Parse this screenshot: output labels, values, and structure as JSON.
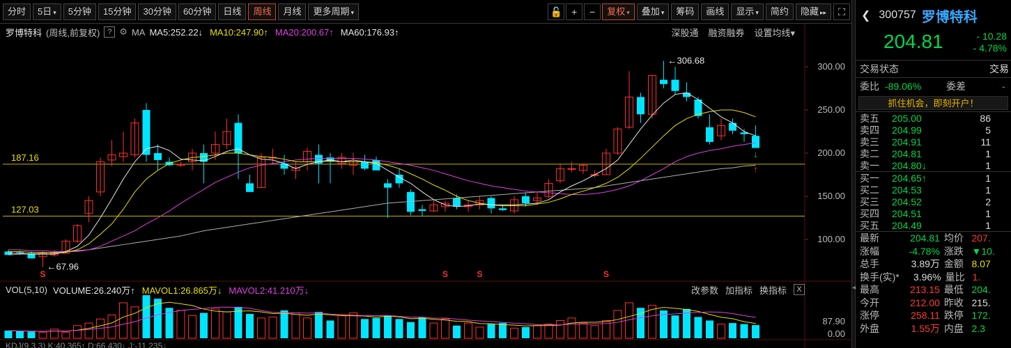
{
  "toolbar": {
    "periods": [
      {
        "label": "分时",
        "dropdown": false,
        "active": false
      },
      {
        "label": "5日",
        "dropdown": true,
        "active": false
      },
      {
        "label": "5分钟",
        "dropdown": false,
        "active": false
      },
      {
        "label": "15分钟",
        "dropdown": false,
        "active": false
      },
      {
        "label": "30分钟",
        "dropdown": false,
        "active": false
      },
      {
        "label": "60分钟",
        "dropdown": false,
        "active": false
      },
      {
        "label": "日线",
        "dropdown": false,
        "active": false
      },
      {
        "label": "周线",
        "dropdown": false,
        "active": true
      },
      {
        "label": "月线",
        "dropdown": false,
        "active": false
      },
      {
        "label": "更多周期",
        "dropdown": true,
        "active": false
      }
    ],
    "tools": [
      {
        "label": "复权",
        "dropdown": true,
        "active": true
      },
      {
        "label": "叠加",
        "dropdown": true,
        "active": false
      },
      {
        "label": "筹码",
        "dropdown": false,
        "active": false
      },
      {
        "label": "画线",
        "dropdown": false,
        "active": false
      },
      {
        "label": "显示",
        "dropdown": true,
        "active": false
      },
      {
        "label": "简约",
        "dropdown": false,
        "active": false
      },
      {
        "label": "隐藏",
        "dropdown": false,
        "active": false
      }
    ],
    "icons": [
      "lock-icon",
      "zoom-in-icon",
      "zoom-out-icon"
    ],
    "icon_glyphs": [
      "🔓",
      "+",
      "−"
    ],
    "hide_glyph": "▸▸",
    "fullscreen_glyph": "⛶"
  },
  "indicator_bar": {
    "stock_name": "罗博特科",
    "subtitle": "(周线,前复权)",
    "help": "?",
    "ma_label": "MA",
    "ma_items": [
      {
        "text": "MA5:252.22↓",
        "color": "#e6e6e6"
      },
      {
        "text": "MA10:247.90↑",
        "color": "#e8e000"
      },
      {
        "text": "MA20:200.67↑",
        "color": "#e040e0"
      },
      {
        "text": "MA60:176.93↑",
        "color": "#e6e6e6"
      }
    ],
    "links": [
      "深股通",
      "融资融券",
      "设置均线▾"
    ]
  },
  "price_axis": {
    "labels": [
      "300.00",
      "250.00",
      "200.00",
      "150.00",
      "100.00"
    ],
    "values": [
      300,
      250,
      200,
      150,
      100
    ]
  },
  "reference_lines": [
    {
      "label": "187.16",
      "value": 187.16
    },
    {
      "label": "127.03",
      "value": 127.03
    }
  ],
  "annotations": {
    "high": "306.68",
    "low": "67.96",
    "s_marker": "S"
  },
  "chart_data": {
    "type": "candlestick",
    "period": "weekly",
    "candles": [
      {
        "o": 86,
        "h": 88,
        "l": 84,
        "c": 82
      },
      {
        "o": 85,
        "h": 87,
        "l": 82,
        "c": 84
      },
      {
        "o": 84,
        "h": 86,
        "l": 78,
        "c": 78
      },
      {
        "o": 80,
        "h": 86,
        "l": 68,
        "c": 84
      },
      {
        "o": 82,
        "h": 88,
        "l": 80,
        "c": 85
      },
      {
        "o": 84,
        "h": 100,
        "l": 84,
        "c": 98
      },
      {
        "o": 98,
        "h": 118,
        "l": 96,
        "c": 116
      },
      {
        "o": 130,
        "h": 150,
        "l": 120,
        "c": 145
      },
      {
        "o": 155,
        "h": 195,
        "l": 150,
        "c": 190
      },
      {
        "o": 192,
        "h": 215,
        "l": 185,
        "c": 198
      },
      {
        "o": 196,
        "h": 225,
        "l": 190,
        "c": 200
      },
      {
        "o": 198,
        "h": 240,
        "l": 195,
        "c": 235
      },
      {
        "o": 250,
        "h": 258,
        "l": 190,
        "c": 198
      },
      {
        "o": 200,
        "h": 210,
        "l": 180,
        "c": 192
      },
      {
        "o": 190,
        "h": 195,
        "l": 185,
        "c": 186
      },
      {
        "o": 186,
        "h": 190,
        "l": 184,
        "c": 187
      },
      {
        "o": 190,
        "h": 205,
        "l": 180,
        "c": 200
      },
      {
        "o": 200,
        "h": 210,
        "l": 165,
        "c": 190
      },
      {
        "o": 200,
        "h": 225,
        "l": 192,
        "c": 210
      },
      {
        "o": 210,
        "h": 240,
        "l": 205,
        "c": 225
      },
      {
        "o": 235,
        "h": 245,
        "l": 170,
        "c": 200
      },
      {
        "o": 165,
        "h": 175,
        "l": 155,
        "c": 155
      },
      {
        "o": 160,
        "h": 200,
        "l": 160,
        "c": 195
      },
      {
        "o": 195,
        "h": 205,
        "l": 188,
        "c": 195
      },
      {
        "o": 188,
        "h": 198,
        "l": 175,
        "c": 182
      },
      {
        "o": 180,
        "h": 190,
        "l": 170,
        "c": 183
      },
      {
        "o": 190,
        "h": 206,
        "l": 180,
        "c": 202
      },
      {
        "o": 198,
        "h": 210,
        "l": 165,
        "c": 188
      },
      {
        "o": 195,
        "h": 200,
        "l": 165,
        "c": 190
      },
      {
        "o": 188,
        "h": 200,
        "l": 182,
        "c": 195
      },
      {
        "o": 186,
        "h": 200,
        "l": 175,
        "c": 190
      },
      {
        "o": 190,
        "h": 198,
        "l": 180,
        "c": 182
      },
      {
        "o": 192,
        "h": 196,
        "l": 180,
        "c": 180
      },
      {
        "o": 165,
        "h": 170,
        "l": 125,
        "c": 160
      },
      {
        "o": 175,
        "h": 182,
        "l": 160,
        "c": 165
      },
      {
        "o": 155,
        "h": 158,
        "l": 128,
        "c": 132
      },
      {
        "o": 135,
        "h": 140,
        "l": 127,
        "c": 133
      },
      {
        "o": 133,
        "h": 145,
        "l": 132,
        "c": 140
      },
      {
        "o": 138,
        "h": 145,
        "l": 132,
        "c": 142
      },
      {
        "o": 148,
        "h": 152,
        "l": 135,
        "c": 138
      },
      {
        "o": 138,
        "h": 145,
        "l": 132,
        "c": 140
      },
      {
        "o": 140,
        "h": 150,
        "l": 135,
        "c": 145
      },
      {
        "o": 148,
        "h": 150,
        "l": 130,
        "c": 136
      },
      {
        "o": 136,
        "h": 140,
        "l": 133,
        "c": 134
      },
      {
        "o": 133,
        "h": 150,
        "l": 130,
        "c": 146
      },
      {
        "o": 150,
        "h": 154,
        "l": 138,
        "c": 142
      },
      {
        "o": 145,
        "h": 155,
        "l": 140,
        "c": 148
      },
      {
        "o": 150,
        "h": 170,
        "l": 148,
        "c": 165
      },
      {
        "o": 168,
        "h": 188,
        "l": 165,
        "c": 182
      },
      {
        "o": 182,
        "h": 190,
        "l": 178,
        "c": 182
      },
      {
        "o": 180,
        "h": 188,
        "l": 176,
        "c": 186
      },
      {
        "o": 175,
        "h": 180,
        "l": 172,
        "c": 175
      },
      {
        "o": 175,
        "h": 205,
        "l": 175,
        "c": 200
      },
      {
        "o": 200,
        "h": 230,
        "l": 198,
        "c": 228
      },
      {
        "o": 230,
        "h": 295,
        "l": 228,
        "c": 265
      },
      {
        "o": 265,
        "h": 270,
        "l": 235,
        "c": 245
      },
      {
        "o": 245,
        "h": 290,
        "l": 240,
        "c": 290
      },
      {
        "o": 285,
        "h": 307,
        "l": 275,
        "c": 280
      },
      {
        "o": 285,
        "h": 300,
        "l": 268,
        "c": 272
      },
      {
        "o": 270,
        "h": 282,
        "l": 260,
        "c": 265
      },
      {
        "o": 262,
        "h": 265,
        "l": 240,
        "c": 243
      },
      {
        "o": 230,
        "h": 245,
        "l": 210,
        "c": 213
      },
      {
        "o": 220,
        "h": 240,
        "l": 215,
        "c": 232
      },
      {
        "o": 235,
        "h": 240,
        "l": 222,
        "c": 226
      },
      {
        "o": 224,
        "h": 228,
        "l": 213,
        "c": 222
      },
      {
        "o": 220,
        "h": 232,
        "l": 208,
        "c": 206
      }
    ],
    "ma5": [
      84,
      84,
      83,
      83,
      83,
      86,
      92,
      105,
      125,
      147,
      170,
      190,
      205,
      208,
      203,
      193,
      192,
      191,
      196,
      202,
      205,
      198,
      193,
      192,
      188,
      182,
      187,
      190,
      192,
      190,
      192,
      190,
      188,
      180,
      172,
      165,
      155,
      146,
      140,
      138,
      139,
      141,
      140,
      140,
      140,
      141,
      142,
      146,
      155,
      162,
      168,
      175,
      182,
      192,
      210,
      228,
      244,
      258,
      268,
      270,
      262,
      252,
      242,
      235,
      225,
      220
    ],
    "ma10": [
      86,
      86,
      85,
      85,
      84,
      85,
      88,
      95,
      106,
      118,
      135,
      155,
      170,
      180,
      188,
      192,
      195,
      196,
      198,
      200,
      200,
      198,
      196,
      195,
      193,
      190,
      190,
      190,
      191,
      190,
      190,
      190,
      189,
      186,
      182,
      176,
      170,
      163,
      157,
      150,
      145,
      142,
      140,
      139,
      139,
      139,
      141,
      143,
      147,
      152,
      156,
      160,
      165,
      172,
      182,
      194,
      207,
      220,
      232,
      240,
      245,
      248,
      250,
      250,
      247,
      242
    ],
    "ma20": [
      88,
      88,
      87,
      87,
      86,
      86,
      86,
      88,
      92,
      98,
      104,
      110,
      118,
      125,
      133,
      142,
      150,
      158,
      166,
      172,
      178,
      183,
      186,
      188,
      190,
      192,
      193,
      194,
      194,
      194,
      194,
      193,
      192,
      190,
      188,
      186,
      183,
      180,
      176,
      172,
      168,
      165,
      162,
      160,
      158,
      156,
      155,
      154,
      153,
      152,
      152,
      153,
      155,
      158,
      162,
      168,
      175,
      182,
      190,
      196,
      200,
      203,
      205,
      208,
      210,
      212
    ],
    "ma60": [
      82,
      83,
      83,
      84,
      85,
      86,
      87,
      88,
      90,
      92,
      94,
      96,
      98,
      100,
      102,
      104,
      107,
      110,
      112,
      114,
      116,
      118,
      120,
      122,
      124,
      126,
      128,
      130,
      132,
      134,
      136,
      138,
      140,
      142,
      143,
      144,
      145,
      146,
      147,
      148,
      149,
      150,
      151,
      152,
      153,
      154,
      155,
      156,
      157,
      158,
      159,
      160,
      162,
      164,
      166,
      168,
      170,
      172,
      174,
      176,
      178,
      180,
      182,
      183,
      185,
      186
    ],
    "s_markers": [
      3,
      38,
      41,
      52
    ],
    "ylim": [
      60,
      320
    ]
  },
  "volume_bar": {
    "label": "VOL(5,10)",
    "items": [
      {
        "text": "VOLUME:26.240万↑",
        "color": "#e6e6e6"
      },
      {
        "text": "MAVOL1:26.865万↓",
        "color": "#e8e000"
      },
      {
        "text": "MAVOL2:41.210万↓",
        "color": "#e040e0"
      }
    ],
    "links": [
      "改参数",
      "加指标",
      "换指标"
    ],
    "close": "X",
    "axis_labels": [
      "87.90",
      "0.00"
    ]
  },
  "volume_data": {
    "values": [
      15,
      14,
      13,
      12,
      18,
      12,
      25,
      30,
      38,
      46,
      70,
      62,
      85,
      78,
      60,
      55,
      45,
      50,
      58,
      52,
      62,
      48,
      40,
      42,
      55,
      50,
      40,
      52,
      35,
      45,
      50,
      38,
      40,
      45,
      38,
      32,
      42,
      30,
      38,
      25,
      30,
      22,
      28,
      30,
      20,
      22,
      25,
      28,
      35,
      40,
      30,
      25,
      35,
      55,
      70,
      60,
      65,
      55,
      45,
      58,
      42,
      35,
      28,
      30,
      28,
      26
    ],
    "ymax": 87.9
  },
  "kdj_bar": {
    "text": "KDJ(9,3,3)  K:40.365↑  D:66.430↓  J:-11.235↓"
  },
  "side_panel": {
    "code": "300757",
    "name": "罗博特科",
    "price": "204.81",
    "change": "- 10.28",
    "change_pct": "- 4.78%",
    "status_label": "交易状态",
    "status_value": "交易",
    "weibi_label": "委比",
    "weibi_value": "-89.06%",
    "weicha_label": "委差",
    "weicha_value": "-",
    "cta": "抓住机会，即刻开户！",
    "asks": [
      {
        "label": "卖五",
        "price": "205.00",
        "qty": "86"
      },
      {
        "label": "卖四",
        "price": "204.99",
        "qty": "5"
      },
      {
        "label": "卖三",
        "price": "204.91",
        "qty": "11"
      },
      {
        "label": "卖二",
        "price": "204.81",
        "qty": "1"
      },
      {
        "label": "卖一",
        "price": "204.80↓",
        "qty": "1"
      }
    ],
    "bids": [
      {
        "label": "买一",
        "price": "204.65↑",
        "qty": "1"
      },
      {
        "label": "买二",
        "price": "204.53",
        "qty": "1"
      },
      {
        "label": "买三",
        "price": "204.52",
        "qty": "2"
      },
      {
        "label": "买四",
        "price": "204.51",
        "qty": "1"
      },
      {
        "label": "买五",
        "price": "204.49",
        "qty": "1"
      }
    ],
    "stats": [
      {
        "k": "最新",
        "v": "204.81",
        "vc": "green",
        "k2": "均价",
        "v2": "207.",
        "v2c": "red"
      },
      {
        "k": "涨幅",
        "v": "-4.78%",
        "vc": "green",
        "k2": "涨跌",
        "v2": "▼10.",
        "v2c": "green"
      },
      {
        "k": "总手",
        "v": "3.89万",
        "vc": "white",
        "k2": "金额",
        "v2": "8.07",
        "v2c": "yellow"
      },
      {
        "k": "换手(实)*",
        "v": "3.96%",
        "vc": "white",
        "k2": "量比",
        "v2": "1.",
        "v2c": "red"
      },
      {
        "k": "最高",
        "v": "213.15",
        "vc": "red",
        "k2": "最低",
        "v2": "204.",
        "v2c": "green"
      },
      {
        "k": "今开",
        "v": "212.00",
        "vc": "red",
        "k2": "昨收",
        "v2": "215.",
        "v2c": "white"
      },
      {
        "k": "涨停",
        "v": "258.11",
        "vc": "red",
        "k2": "跌停",
        "v2": "172.",
        "v2c": "green"
      },
      {
        "k": "外盘",
        "v": "1.55万",
        "vc": "red",
        "k2": "内盘",
        "v2": "2.3",
        "v2c": "green"
      }
    ]
  },
  "colors": {
    "up": "#ff3030",
    "down": "#00e5ff",
    "ma5": "#e6e6e6",
    "ma10": "#e8e000",
    "ma20": "#e040e0",
    "ma60": "#b0b0b0",
    "grid": "#5a1010",
    "refline": "#c8b400"
  }
}
